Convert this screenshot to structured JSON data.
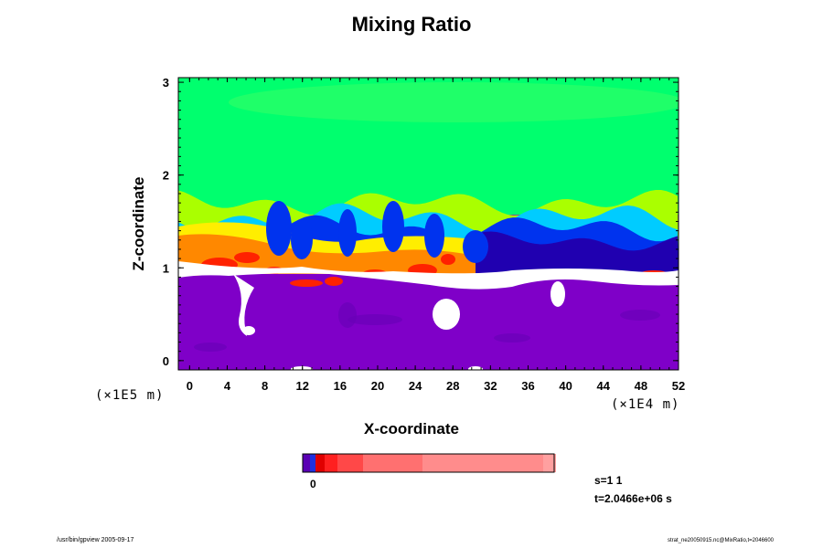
{
  "chart_data": {
    "type": "heatmap",
    "title": "Mixing Ratio",
    "xlabel": "X-coordinate",
    "ylabel": "Z-coordinate",
    "x_scale_label": "(×1E4 m)",
    "z_scale_label": "(×1E5 m)",
    "xlim": [
      -1.2,
      52
    ],
    "ylim": [
      -0.1,
      3.05
    ],
    "x_ticks": [
      "0",
      "4",
      "8",
      "12",
      "16",
      "20",
      "24",
      "28",
      "32",
      "36",
      "40",
      "44",
      "48",
      "52"
    ],
    "y_ticks": [
      "0",
      "1",
      "2",
      "3"
    ],
    "colorbar_label": "0",
    "colors": {
      "background_field": "#7f00c8",
      "upper_field": "#00ff6e",
      "upper_field_light": "#33ff66",
      "mid_band": "#aaff00",
      "yellow_band": "#ffee00",
      "orange_band": "#ff8800",
      "red_blobs": "#ff2200",
      "cyan_band": "#00ccff",
      "blue_band": "#0033ee",
      "navy_band": "#2000b0",
      "void": "#ffffff"
    },
    "colorbar_segments": [
      "#5a00b4",
      "#2030e0",
      "#e00000",
      "#ff2020",
      "#ff4848",
      "#ff7070",
      "#ff8c8c",
      "#ffa0a0"
    ]
  },
  "annotations": {
    "s_value": "s=1 1",
    "t_value": "t=2.0466e+06 s",
    "footer_left": "/usr/bin/gpview 2005-09-17",
    "footer_right": "strat_ne20050915.nc@MixRatio,t=2046600"
  }
}
